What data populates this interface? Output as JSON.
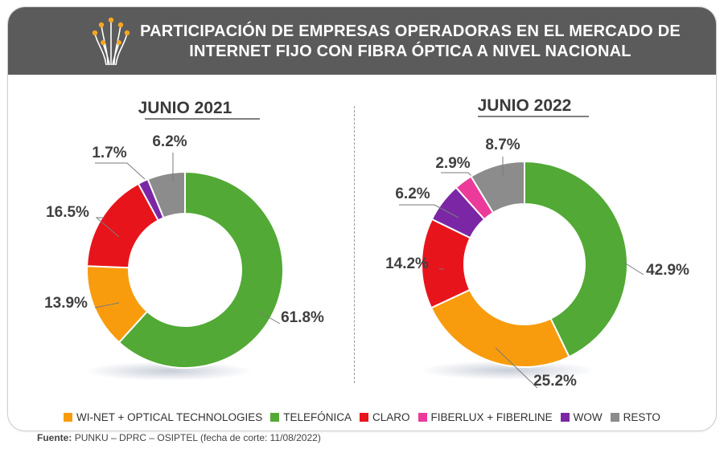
{
  "header": {
    "title_line1": "PARTICIPACIÓN DE EMPRESAS OPERADORAS EN EL MERCADO DE",
    "title_line2": "INTERNET FIJO CON FIBRA ÓPTICA A NIVEL NACIONAL"
  },
  "colors": {
    "header_bg": "#5b5b5b",
    "fiber_icon_dot": "#f5a623",
    "wi_net": "#f89c0e",
    "telefonica": "#52a935",
    "claro": "#e8141b",
    "fiberlux": "#ec3a9a",
    "wow": "#7b27a5",
    "resto": "#8c8c8c",
    "label_text": "#404040"
  },
  "legend": [
    {
      "label": "WI-NET + OPTICAL TECHNOLOGIES",
      "color": "#f89c0e"
    },
    {
      "label": "TELEFÓNICA",
      "color": "#52a935"
    },
    {
      "label": "CLARO",
      "color": "#e8141b"
    },
    {
      "label": "FIBERLUX + FIBERLINE",
      "color": "#ec3a9a"
    },
    {
      "label": "WOW",
      "color": "#7b27a5"
    },
    {
      "label": "RESTO",
      "color": "#8c8c8c"
    }
  ],
  "source": {
    "prefix": "Fuente:",
    "text": "PUNKU – DPRC – OSIPTEL (fecha de corte: 11/08/2022)"
  },
  "chart_data": [
    {
      "type": "pie",
      "title": "JUNIO 2021",
      "slices": [
        {
          "name": "TELEFÓNICA",
          "value": 61.8,
          "label": "61.8%",
          "color": "#52a935"
        },
        {
          "name": "WI-NET + OPTICAL TECHNOLOGIES",
          "value": 13.9,
          "label": "13.9%",
          "color": "#f89c0e"
        },
        {
          "name": "CLARO",
          "value": 16.5,
          "label": "16.5%",
          "color": "#e8141b"
        },
        {
          "name": "WOW",
          "value": 1.7,
          "label": "1.7%",
          "color": "#7b27a5"
        },
        {
          "name": "RESTO",
          "value": 6.2,
          "label": "6.2%",
          "color": "#8c8c8c"
        }
      ]
    },
    {
      "type": "pie",
      "title": "JUNIO 2022",
      "slices": [
        {
          "name": "TELEFÓNICA",
          "value": 42.9,
          "label": "42.9%",
          "color": "#52a935"
        },
        {
          "name": "WI-NET + OPTICAL TECHNOLOGIES",
          "value": 25.2,
          "label": "25.2%",
          "color": "#f89c0e"
        },
        {
          "name": "CLARO",
          "value": 14.2,
          "label": "14.2%",
          "color": "#e8141b"
        },
        {
          "name": "WOW",
          "value": 6.2,
          "label": "6.2%",
          "color": "#7b27a5"
        },
        {
          "name": "FIBERLUX + FIBERLINE",
          "value": 2.9,
          "label": "2.9%",
          "color": "#ec3a9a"
        },
        {
          "name": "RESTO",
          "value": 8.7,
          "label": "8.7%",
          "color": "#8c8c8c"
        }
      ]
    }
  ]
}
